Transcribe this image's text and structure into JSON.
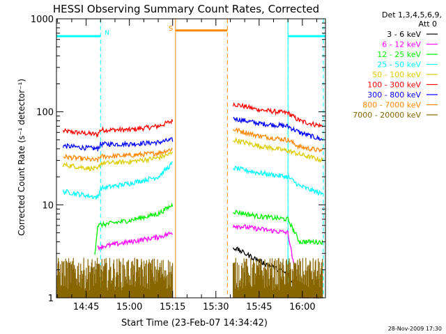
{
  "chart_data": {
    "type": "line",
    "title": "HESSI Observing Summary Count Rates, Corrected",
    "xlabel": "Start Time (23-Feb-07 14:34:42)",
    "ylabel": "Corrected Count Rate (s⁻¹ detector⁻¹)",
    "yscale": "log",
    "ylim": [
      1,
      1000
    ],
    "x_units": "minutes of day",
    "xlim": [
      "14:34:42",
      "16:08:00"
    ],
    "x_ticks": [
      "14:45",
      "15:00",
      "15:15",
      "15:30",
      "15:45",
      "16:00"
    ],
    "y_ticks": [
      "1",
      "10",
      "100",
      "1000"
    ],
    "legend": {
      "placement": "outside-right",
      "header": [
        "Det 1,3,4,5,6,9,",
        "Att 0"
      ],
      "entries": [
        {
          "label": "3 - 6 keV",
          "color": "#000000"
        },
        {
          "label": "6 - 12 keV",
          "color": "#ff00ff"
        },
        {
          "label": "12 - 25 keV",
          "color": "#00ee00"
        },
        {
          "label": "25 - 50 keV",
          "color": "#00ffff"
        },
        {
          "label": "50 - 100 keV",
          "color": "#ddcc00"
        },
        {
          "label": "100 - 300 keV",
          "color": "#ff0000"
        },
        {
          "label": "300 - 800 keV",
          "color": "#0000ff"
        },
        {
          "label": "800 - 7000 keV",
          "color": "#ff8800"
        },
        {
          "label": "7000 - 20000 keV",
          "color": "#886600"
        }
      ]
    },
    "annotations": [
      {
        "label": "N",
        "color": "#00ffff"
      },
      {
        "label": "S",
        "color": "#ff8800"
      }
    ],
    "night_intervals": [
      [
        "14:34:42",
        "14:50:00"
      ],
      [
        "15:55:00",
        "16:08:00"
      ]
    ],
    "saa_interval": [
      "15:16:00",
      "15:34:00"
    ],
    "gaps": [
      [
        "15:15:00",
        "15:36:00"
      ]
    ],
    "series": [
      {
        "name": "100 - 300 keV",
        "color": "#ff0000",
        "points": [
          [
            "14:37",
            62
          ],
          [
            "14:49",
            57
          ],
          [
            "14:50",
            64
          ],
          [
            "15:00",
            64
          ],
          [
            "15:10",
            70
          ],
          [
            "15:15",
            80
          ],
          [
            "15:36",
            122
          ],
          [
            "15:45",
            105
          ],
          [
            "15:55",
            97
          ],
          [
            "15:59",
            80
          ],
          [
            "16:07",
            70
          ]
        ]
      },
      {
        "name": "300 - 800 keV",
        "color": "#0000ff",
        "points": [
          [
            "14:37",
            43
          ],
          [
            "14:49",
            40
          ],
          [
            "14:50",
            45
          ],
          [
            "15:00",
            45
          ],
          [
            "15:10",
            47
          ],
          [
            "15:15",
            50
          ],
          [
            "15:36",
            85
          ],
          [
            "15:45",
            75
          ],
          [
            "15:55",
            70
          ],
          [
            "15:59",
            60
          ],
          [
            "16:07",
            50
          ]
        ]
      },
      {
        "name": "800 - 7000 keV",
        "color": "#ff8800",
        "points": [
          [
            "14:37",
            33
          ],
          [
            "14:49",
            30
          ],
          [
            "14:50",
            33
          ],
          [
            "15:00",
            34
          ],
          [
            "15:10",
            36
          ],
          [
            "15:15",
            40
          ],
          [
            "15:36",
            65
          ],
          [
            "15:45",
            55
          ],
          [
            "15:55",
            50
          ],
          [
            "15:59",
            42
          ],
          [
            "16:07",
            38
          ]
        ]
      },
      {
        "name": "50 - 100 keV",
        "color": "#ddcc00",
        "points": [
          [
            "14:37",
            27
          ],
          [
            "14:49",
            24
          ],
          [
            "14:50",
            28
          ],
          [
            "15:00",
            29
          ],
          [
            "15:10",
            32
          ],
          [
            "15:15",
            36
          ],
          [
            "15:36",
            50
          ],
          [
            "15:45",
            43
          ],
          [
            "15:55",
            38
          ],
          [
            "15:59",
            35
          ],
          [
            "16:07",
            30
          ]
        ]
      },
      {
        "name": "25 - 50 keV",
        "color": "#00ffff",
        "points": [
          [
            "14:37",
            14
          ],
          [
            "14:49",
            12
          ],
          [
            "14:50",
            15
          ],
          [
            "15:00",
            17
          ],
          [
            "15:10",
            20
          ],
          [
            "15:15",
            28
          ],
          [
            "15:36",
            25
          ],
          [
            "15:45",
            22
          ],
          [
            "15:55",
            20
          ],
          [
            "15:59",
            16
          ],
          [
            "16:07",
            13
          ]
        ]
      },
      {
        "name": "12 - 25 keV",
        "color": "#00ee00",
        "points": [
          [
            "14:48",
            3
          ],
          [
            "14:49",
            6
          ],
          [
            "15:00",
            6.8
          ],
          [
            "15:10",
            8
          ],
          [
            "15:15",
            10
          ],
          [
            "15:36",
            8.5
          ],
          [
            "15:45",
            7.5
          ],
          [
            "15:55",
            7
          ],
          [
            "15:59",
            4
          ],
          [
            "16:07",
            4
          ]
        ]
      },
      {
        "name": "6 - 12 keV",
        "color": "#ff00ff",
        "points": [
          [
            "14:49",
            3.5
          ],
          [
            "15:00",
            4
          ],
          [
            "15:10",
            4.5
          ],
          [
            "15:15",
            5
          ],
          [
            "15:36",
            6
          ],
          [
            "15:45",
            5.5
          ],
          [
            "15:55",
            5
          ],
          [
            "15:59",
            1
          ],
          [
            "16:07",
            1
          ]
        ]
      },
      {
        "name": "3 - 6 keV",
        "color": "#000000",
        "points": [
          [
            "15:36",
            3.5
          ],
          [
            "15:45",
            2.5
          ],
          [
            "15:55",
            1.8
          ],
          [
            "15:59",
            1
          ],
          [
            "16:07",
            1
          ]
        ]
      },
      {
        "name": "7000 - 20000 keV",
        "color": "#886600",
        "points": [
          [
            "14:35",
            2.5
          ],
          [
            "15:00",
            2.5
          ],
          [
            "15:15",
            2.5
          ],
          [
            "15:36",
            2.5
          ],
          [
            "15:55",
            2.5
          ],
          [
            "16:07",
            2.5
          ]
        ]
      }
    ]
  },
  "footer": {
    "timestamp": "28-Nov-2009 17:30"
  }
}
